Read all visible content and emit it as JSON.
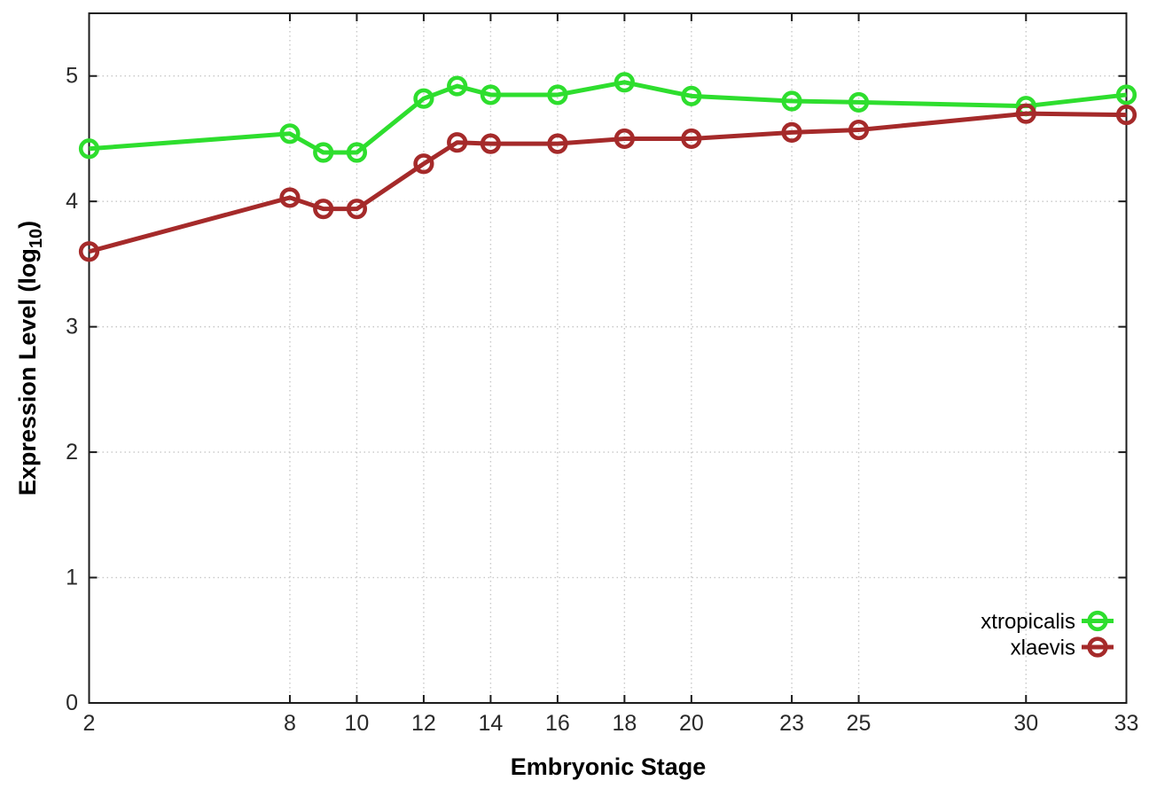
{
  "chart_data": {
    "type": "line",
    "title": "",
    "xlabel": "Embryonic Stage",
    "ylabel": "Expression Level (log10)",
    "x": [
      2,
      8,
      9,
      10,
      12,
      13,
      14,
      16,
      18,
      20,
      23,
      25,
      30,
      33
    ],
    "series": [
      {
        "name": "xtropicalis",
        "color": "#2ede2e",
        "values": [
          4.42,
          4.54,
          4.39,
          4.39,
          4.82,
          4.92,
          4.85,
          4.85,
          4.95,
          4.84,
          4.8,
          4.79,
          4.76,
          4.85
        ]
      },
      {
        "name": "xlaevis",
        "color": "#a52a2a",
        "values": [
          3.6,
          4.03,
          3.94,
          3.94,
          4.3,
          4.47,
          4.46,
          4.46,
          4.5,
          4.5,
          4.55,
          4.57,
          4.7,
          4.69
        ]
      }
    ],
    "xticks": [
      2,
      8,
      10,
      12,
      14,
      16,
      18,
      20,
      23,
      25,
      30,
      33
    ],
    "yticks": [
      0,
      1,
      2,
      3,
      4,
      5
    ],
    "xlim": [
      2,
      33
    ],
    "ylim": [
      0,
      5.5
    ],
    "grid": true,
    "legend_position": "right-lower",
    "marker": "open-circle"
  },
  "labels": {
    "xlabel": "Embryonic Stage",
    "ylabel_prefix": "Expression Level (log",
    "ylabel_sub": "10",
    "ylabel_suffix": ")"
  },
  "colors": {
    "background": "#ffffff",
    "axis": "#1c1c1c",
    "grid": "#c8c8c8",
    "tick_text": "#2a2a2a",
    "xtropicalis": "#2ede2e",
    "xlaevis": "#a52a2a"
  }
}
